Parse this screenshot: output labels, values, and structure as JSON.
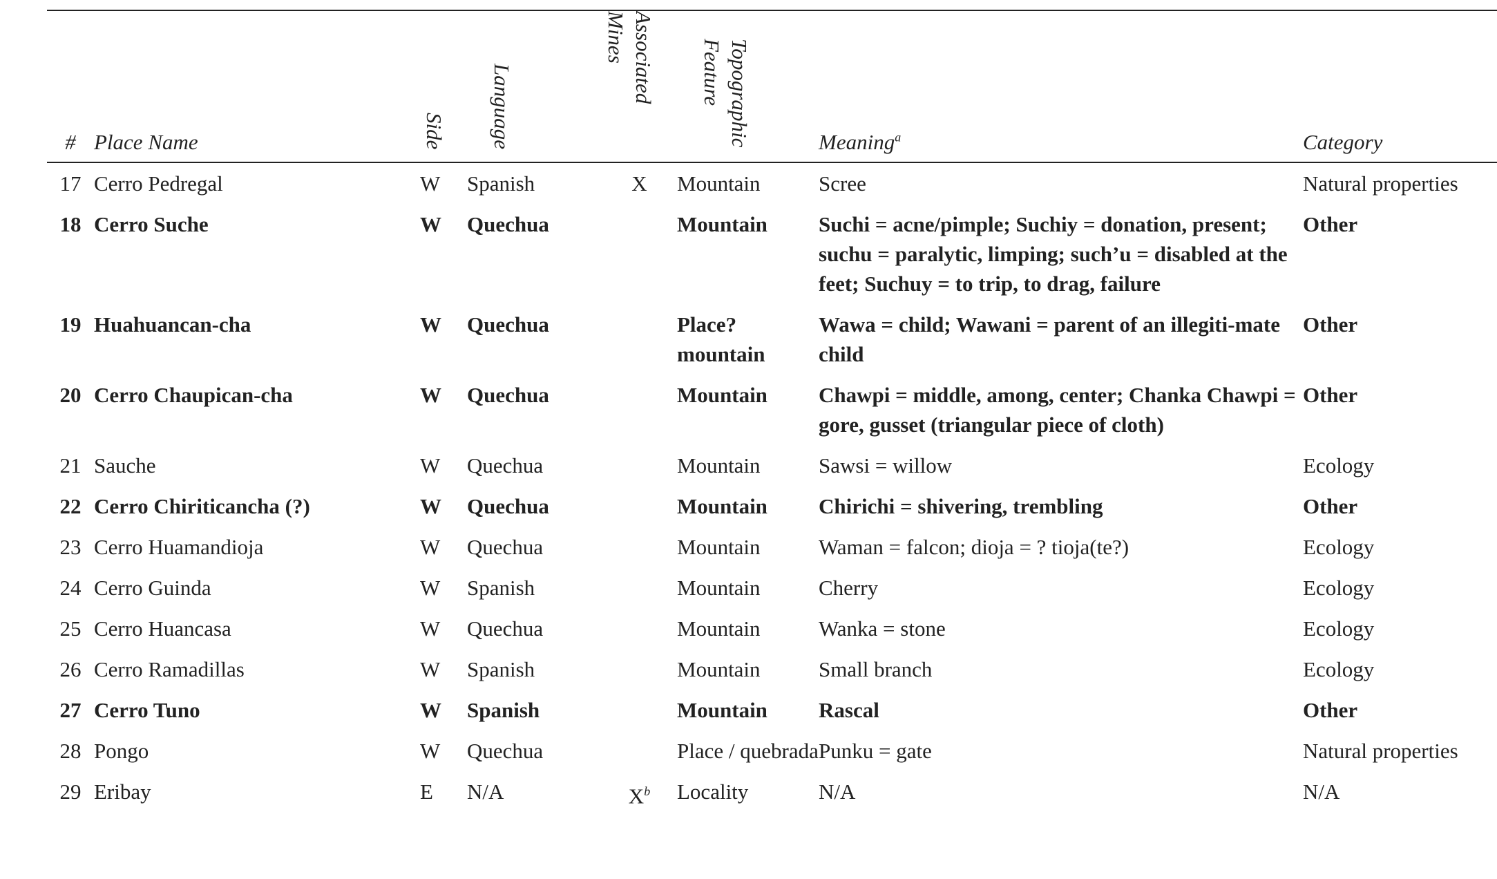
{
  "headers": {
    "num": "#",
    "place": "Place Name",
    "side": "Side",
    "language": "Language",
    "mines": "Associated Mines",
    "topo": "Topographic Feature",
    "meaning": "Meaning",
    "meaning_note": "a",
    "category": "Category"
  },
  "rows": [
    {
      "num": "17",
      "place": "Cerro Pedregal",
      "side": "W",
      "language": "Spanish",
      "mines": "X",
      "mines_note": "",
      "topo": "Mountain",
      "meaning": "Scree",
      "category": "Natural properties",
      "bold": false
    },
    {
      "num": "18",
      "place": "Cerro Suche",
      "side": "W",
      "language": "Quechua",
      "mines": "",
      "mines_note": "",
      "topo": "Mountain",
      "meaning": "Suchi = acne/pimple; Suchiy = donation, present; suchu = paralytic, limping; such’u = disabled at the feet; Suchuy = to trip, to drag, failure",
      "category": "Other",
      "bold": true
    },
    {
      "num": "19",
      "place": "Huahuancan-cha",
      "side": "W",
      "language": "Quechua",
      "mines": "",
      "mines_note": "",
      "topo": "Place? mountain",
      "meaning": "Wawa = child; Wawani = parent of an illegiti-mate child",
      "category": "Other",
      "bold": true
    },
    {
      "num": "20",
      "place": "Cerro Chaupican-cha",
      "side": "W",
      "language": "Quechua",
      "mines": "",
      "mines_note": "",
      "topo": "Mountain",
      "meaning": "Chawpi = middle, among, center; Chanka Chawpi = gore, gusset (triangular piece of cloth)",
      "category": "Other",
      "bold": true
    },
    {
      "num": "21",
      "place": "Sauche",
      "side": "W",
      "language": "Quechua",
      "mines": "",
      "mines_note": "",
      "topo": "Mountain",
      "meaning": "Sawsi = willow",
      "category": "Ecology",
      "bold": false
    },
    {
      "num": "22",
      "place": "Cerro Chiriticancha (?)",
      "side": "W",
      "language": "Quechua",
      "mines": "",
      "mines_note": "",
      "topo": "Mountain",
      "meaning": "Chirichi = shivering, trembling",
      "category": "Other",
      "bold": true
    },
    {
      "num": "23",
      "place": "Cerro Huamandioja",
      "side": "W",
      "language": "Quechua",
      "mines": "",
      "mines_note": "",
      "topo": "Mountain",
      "meaning": "Waman = falcon; dioja = ? tioja(te?)",
      "category": "Ecology",
      "bold": false
    },
    {
      "num": "24",
      "place": "Cerro Guinda",
      "side": "W",
      "language": "Spanish",
      "mines": "",
      "mines_note": "",
      "topo": "Mountain",
      "meaning": "Cherry",
      "category": "Ecology",
      "bold": false
    },
    {
      "num": "25",
      "place": "Cerro Huancasa",
      "side": "W",
      "language": "Quechua",
      "mines": "",
      "mines_note": "",
      "topo": "Mountain",
      "meaning": "Wanka = stone",
      "category": "Ecology",
      "bold": false
    },
    {
      "num": "26",
      "place": "Cerro Ramadillas",
      "side": "W",
      "language": "Spanish",
      "mines": "",
      "mines_note": "",
      "topo": "Mountain",
      "meaning": "Small branch",
      "category": "Ecology",
      "bold": false
    },
    {
      "num": "27",
      "place": "Cerro Tuno",
      "side": "W",
      "language": "Spanish",
      "mines": "",
      "mines_note": "",
      "topo": "Mountain",
      "meaning": "Rascal",
      "category": "Other",
      "bold": true
    },
    {
      "num": "28",
      "place": "Pongo",
      "side": "W",
      "language": "Quechua",
      "mines": "",
      "mines_note": "",
      "topo": "Place / quebrada",
      "meaning": "Punku = gate",
      "category": "Natural properties",
      "bold": false
    },
    {
      "num": "29",
      "place": "Eribay",
      "side": "E",
      "language": "N/A",
      "mines": "X",
      "mines_note": "b",
      "topo": "Locality",
      "meaning": "N/A",
      "category": "N/A",
      "bold": false
    }
  ]
}
